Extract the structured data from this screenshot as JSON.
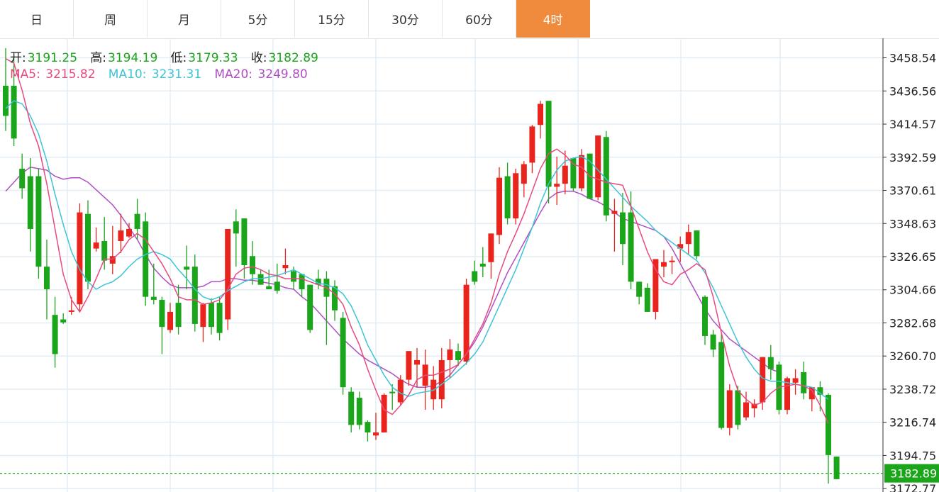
{
  "tabs": [
    {
      "label": "日",
      "active": false
    },
    {
      "label": "周",
      "active": false
    },
    {
      "label": "月",
      "active": false
    },
    {
      "label": "5分",
      "active": false
    },
    {
      "label": "15分",
      "active": false
    },
    {
      "label": "30分",
      "active": false
    },
    {
      "label": "60分",
      "active": false
    },
    {
      "label": "4时",
      "active": true
    }
  ],
  "ohlc": {
    "open_label": "开:",
    "open": "3191.25",
    "high_label": "高:",
    "high": "3194.19",
    "low_label": "低:",
    "low": "3179.33",
    "close_label": "收:",
    "close": "3182.89"
  },
  "ma": {
    "ma5_label": "MA5:",
    "ma5": "3215.82",
    "ma10_label": "MA10:",
    "ma10": "3231.31",
    "ma20_label": "MA20:",
    "ma20": "3249.80"
  },
  "colors": {
    "up": "#e8241c",
    "down": "#1aa51a",
    "ma5": "#e84a7f",
    "ma10": "#3ec3d6",
    "ma20": "#b04fc4",
    "grid": "#e3edf5",
    "accent": "#f08a3c",
    "value_text": "#1aa51a"
  },
  "chart_data": {
    "type": "candlestick",
    "y_ticks": [
      "3458.54",
      "3436.56",
      "3414.57",
      "3392.59",
      "3370.61",
      "3348.63",
      "3326.65",
      "3304.66",
      "3282.68",
      "3260.70",
      "3238.72",
      "3216.74",
      "3194.75",
      "3172.77"
    ],
    "ylim": [
      3170.5,
      3471.5
    ],
    "last_price": "3182.89",
    "grid": true,
    "candles": [
      [
        3440,
        3465,
        3420,
        3410
      ],
      [
        3440,
        3460,
        3405,
        3400
      ],
      [
        3385,
        3395,
        3372,
        3365
      ],
      [
        3380,
        3392,
        3345,
        3330
      ],
      [
        3380,
        3385,
        3320,
        3312
      ],
      [
        3320,
        3338,
        3305,
        3285
      ],
      [
        3288,
        3300,
        3262,
        3253
      ],
      [
        3285,
        3289,
        3283,
        3282
      ],
      [
        3290,
        3300,
        3291,
        3288
      ],
      [
        3295,
        3362,
        3356,
        3290
      ],
      [
        3355,
        3364,
        3310,
        3305
      ],
      [
        3332,
        3346,
        3336,
        3330
      ],
      [
        3337,
        3353,
        3324,
        3318
      ],
      [
        3322,
        3347,
        3327,
        3315
      ],
      [
        3337,
        3355,
        3344,
        3329
      ],
      [
        3340,
        3349,
        3345,
        3339
      ],
      [
        3355,
        3365,
        3345,
        3338
      ],
      [
        3350,
        3356,
        3300,
        3294
      ],
      [
        3300,
        3322,
        3298,
        3295
      ],
      [
        3298,
        3300,
        3280,
        3262
      ],
      [
        3278,
        3296,
        3290,
        3276
      ],
      [
        3296,
        3308,
        3280,
        3275
      ],
      [
        3320,
        3334,
        3318,
        3305
      ],
      [
        3320,
        3328,
        3282,
        3277
      ],
      [
        3280,
        3296,
        3295,
        3270
      ],
      [
        3296,
        3299,
        3280,
        3275
      ],
      [
        3296,
        3300,
        3276,
        3271
      ],
      [
        3285,
        3340,
        3345,
        3278
      ],
      [
        3350,
        3358,
        3342,
        3320
      ],
      [
        3352,
        3352,
        3321,
        3312
      ],
      [
        3327,
        3337,
        3315,
        3308
      ],
      [
        3315,
        3318,
        3308,
        3310
      ],
      [
        3307,
        3318,
        3305,
        3306
      ],
      [
        3310,
        3322,
        3304,
        3302
      ],
      [
        3319,
        3332,
        3321,
        3315
      ],
      [
        3317,
        3320,
        3310,
        3305
      ],
      [
        3315,
        3315,
        3305,
        3300
      ],
      [
        3308,
        3307,
        3278,
        3276
      ],
      [
        3312,
        3318,
        3308,
        3305
      ],
      [
        3312,
        3317,
        3300,
        3268
      ],
      [
        3307,
        3311,
        3291,
        3284
      ],
      [
        3286,
        3290,
        3240,
        3235
      ],
      [
        3237,
        3240,
        3215,
        3210
      ],
      [
        3233,
        3237,
        3215,
        3212
      ],
      [
        3217,
        3218,
        3210,
        3204
      ],
      [
        3208,
        3223,
        3210,
        3205
      ],
      [
        3210,
        3236,
        3235,
        3211
      ],
      [
        3237,
        3242,
        3236,
        3225
      ],
      [
        3230,
        3248,
        3245,
        3228
      ],
      [
        3245,
        3262,
        3264,
        3241
      ],
      [
        3255,
        3266,
        3258,
        3240
      ],
      [
        3241,
        3265,
        3255,
        3225
      ],
      [
        3232,
        3254,
        3245,
        3225
      ],
      [
        3232,
        3266,
        3258,
        3226
      ],
      [
        3258,
        3272,
        3265,
        3246
      ],
      [
        3264,
        3269,
        3258,
        3254
      ],
      [
        3257,
        3312,
        3308,
        3255
      ],
      [
        3317,
        3324,
        3310,
        3308
      ],
      [
        3322,
        3333,
        3320,
        3313
      ],
      [
        3323,
        3342,
        3342,
        3312
      ],
      [
        3341,
        3386,
        3379,
        3335
      ],
      [
        3380,
        3389,
        3352,
        3348
      ],
      [
        3352,
        3385,
        3382,
        3348
      ],
      [
        3375,
        3390,
        3388,
        3366
      ],
      [
        3389,
        3414,
        3413,
        3382
      ],
      [
        3414,
        3430,
        3428,
        3405
      ],
      [
        3430,
        3429,
        3373,
        3362
      ],
      [
        3373,
        3393,
        3375,
        3361
      ],
      [
        3375,
        3397,
        3387,
        3368
      ],
      [
        3392,
        3392,
        3372,
        3370
      ],
      [
        3372,
        3398,
        3394,
        3370
      ],
      [
        3395,
        3394,
        3365,
        3365
      ],
      [
        3366,
        3405,
        3407,
        3364
      ],
      [
        3406,
        3410,
        3354,
        3350
      ],
      [
        3355,
        3365,
        3357,
        3330
      ],
      [
        3356,
        3369,
        3335,
        3321
      ],
      [
        3356,
        3370,
        3310,
        3305
      ],
      [
        3310,
        3309,
        3300,
        3295
      ],
      [
        3306,
        3309,
        3290,
        3290
      ],
      [
        3290,
        3316,
        3325,
        3285
      ],
      [
        3320,
        3331,
        3323,
        3313
      ],
      [
        3323,
        3327,
        3324,
        3315
      ],
      [
        3332,
        3340,
        3335,
        3323
      ],
      [
        3335,
        3348,
        3343,
        3328
      ],
      [
        3344,
        3344,
        3327,
        3325
      ],
      [
        3300,
        3301,
        3274,
        3268
      ],
      [
        3275,
        3278,
        3265,
        3260
      ],
      [
        3270,
        3276,
        3213,
        3212
      ],
      [
        3213,
        3242,
        3238,
        3208
      ],
      [
        3238,
        3241,
        3215,
        3212
      ],
      [
        3220,
        3237,
        3230,
        3218
      ],
      [
        3226,
        3232,
        3229,
        3220
      ],
      [
        3230,
        3240,
        3260,
        3225
      ],
      [
        3260,
        3268,
        3252,
        3245
      ],
      [
        3255,
        3257,
        3225,
        3222
      ],
      [
        3225,
        3247,
        3246,
        3222
      ],
      [
        3243,
        3252,
        3246,
        3235
      ],
      [
        3250,
        3257,
        3236,
        3232
      ],
      [
        3232,
        3240,
        3240,
        3224
      ],
      [
        3240,
        3244,
        3235,
        3224
      ],
      [
        3235,
        3236,
        3195,
        3176
      ],
      [
        3194,
        3194,
        3179,
        3183
      ]
    ],
    "ma5": [
      3458,
      3455,
      3437,
      3415,
      3400,
      3375,
      3345,
      3315,
      3298,
      3290,
      3300,
      3312,
      3325,
      3325,
      3330,
      3338,
      3342,
      3338,
      3330,
      3322,
      3312,
      3300,
      3298,
      3298,
      3295,
      3296,
      3298,
      3305,
      3315,
      3319,
      3320,
      3318,
      3315,
      3314,
      3312,
      3312,
      3312,
      3310,
      3308,
      3306,
      3302,
      3295,
      3280,
      3268,
      3252,
      3238,
      3225,
      3222,
      3228,
      3235,
      3245,
      3248,
      3248,
      3250,
      3252,
      3255,
      3262,
      3272,
      3282,
      3296,
      3315,
      3330,
      3342,
      3355,
      3370,
      3385,
      3395,
      3398,
      3394,
      3388,
      3386,
      3380,
      3378,
      3376,
      3375,
      3374,
      3360,
      3345,
      3330,
      3318,
      3310,
      3308,
      3315,
      3318,
      3322,
      3318,
      3300,
      3276,
      3254,
      3238,
      3232,
      3228,
      3230,
      3236,
      3240,
      3241,
      3242,
      3241,
      3238,
      3228,
      3216
    ],
    "ma10": [
      3425,
      3430,
      3428,
      3420,
      3408,
      3390,
      3368,
      3348,
      3330,
      3318,
      3310,
      3305,
      3308,
      3310,
      3314,
      3320,
      3325,
      3328,
      3330,
      3328,
      3325,
      3318,
      3312,
      3305,
      3300,
      3298,
      3300,
      3304,
      3307,
      3310,
      3312,
      3312,
      3313,
      3314,
      3316,
      3318,
      3315,
      3312,
      3309,
      3308,
      3306,
      3302,
      3294,
      3282,
      3268,
      3258,
      3248,
      3240,
      3236,
      3234,
      3236,
      3237,
      3238,
      3242,
      3246,
      3251,
      3256,
      3262,
      3270,
      3282,
      3294,
      3306,
      3318,
      3332,
      3346,
      3362,
      3375,
      3384,
      3390,
      3392,
      3393,
      3390,
      3384,
      3378,
      3372,
      3366,
      3360,
      3355,
      3350,
      3344,
      3340,
      3336,
      3332,
      3328,
      3324,
      3316,
      3306,
      3294,
      3282,
      3270,
      3260,
      3252,
      3246,
      3244,
      3244,
      3243,
      3242,
      3241,
      3240,
      3236,
      3232
    ],
    "ma20": [
      3370,
      3376,
      3382,
      3386,
      3385,
      3384,
      3380,
      3378,
      3379,
      3379,
      3376,
      3371,
      3366,
      3361,
      3354,
      3346,
      3338,
      3328,
      3319,
      3313,
      3308,
      3306,
      3306,
      3306,
      3307,
      3310,
      3310,
      3312,
      3312,
      3311,
      3311,
      3310,
      3309,
      3308,
      3306,
      3305,
      3300,
      3296,
      3290,
      3284,
      3278,
      3272,
      3267,
      3262,
      3258,
      3255,
      3252,
      3249,
      3245,
      3242,
      3240,
      3240,
      3241,
      3244,
      3248,
      3255,
      3262,
      3270,
      3280,
      3292,
      3304,
      3316,
      3326,
      3336,
      3346,
      3356,
      3365,
      3369,
      3370,
      3370,
      3368,
      3365,
      3363,
      3360,
      3356,
      3352,
      3350,
      3348,
      3346,
      3344,
      3340,
      3332,
      3322,
      3312,
      3302,
      3292,
      3284,
      3278,
      3272,
      3268,
      3264,
      3260,
      3256,
      3252,
      3250
    ]
  }
}
